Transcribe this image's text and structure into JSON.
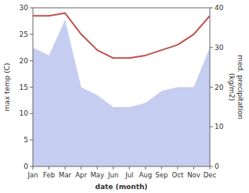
{
  "chart_data": {
    "type": "line",
    "xlabel": "date (month)",
    "ylabel": "max temp (C)",
    "y2label": "med. precipitation\n(kg/m2)",
    "categories": [
      "Jan",
      "Feb",
      "Mar",
      "Apr",
      "May",
      "Jun",
      "Jul",
      "Aug",
      "Sep",
      "Oct",
      "Nov",
      "Dec"
    ],
    "series": [
      {
        "type": "area",
        "axis": "y2",
        "color": "#c5cdf0",
        "values": [
          30.0,
          28.0,
          37.0,
          20.0,
          18.0,
          15.0,
          15.0,
          16.0,
          19.0,
          20.0,
          20.0,
          30.0
        ]
      },
      {
        "type": "line",
        "color": "#c0514d",
        "values": [
          28.5,
          28.5,
          29.0,
          25.0,
          22.0,
          20.5,
          20.5,
          21.0,
          22.0,
          23.0,
          25.0,
          28.5
        ]
      }
    ],
    "ylim": [
      0,
      30
    ],
    "yticks": [
      0,
      5,
      10,
      15,
      20,
      25,
      30
    ],
    "y2lim": [
      0,
      40
    ],
    "y2ticks": [
      0,
      10,
      20,
      30,
      40
    ],
    "grid": false
  }
}
